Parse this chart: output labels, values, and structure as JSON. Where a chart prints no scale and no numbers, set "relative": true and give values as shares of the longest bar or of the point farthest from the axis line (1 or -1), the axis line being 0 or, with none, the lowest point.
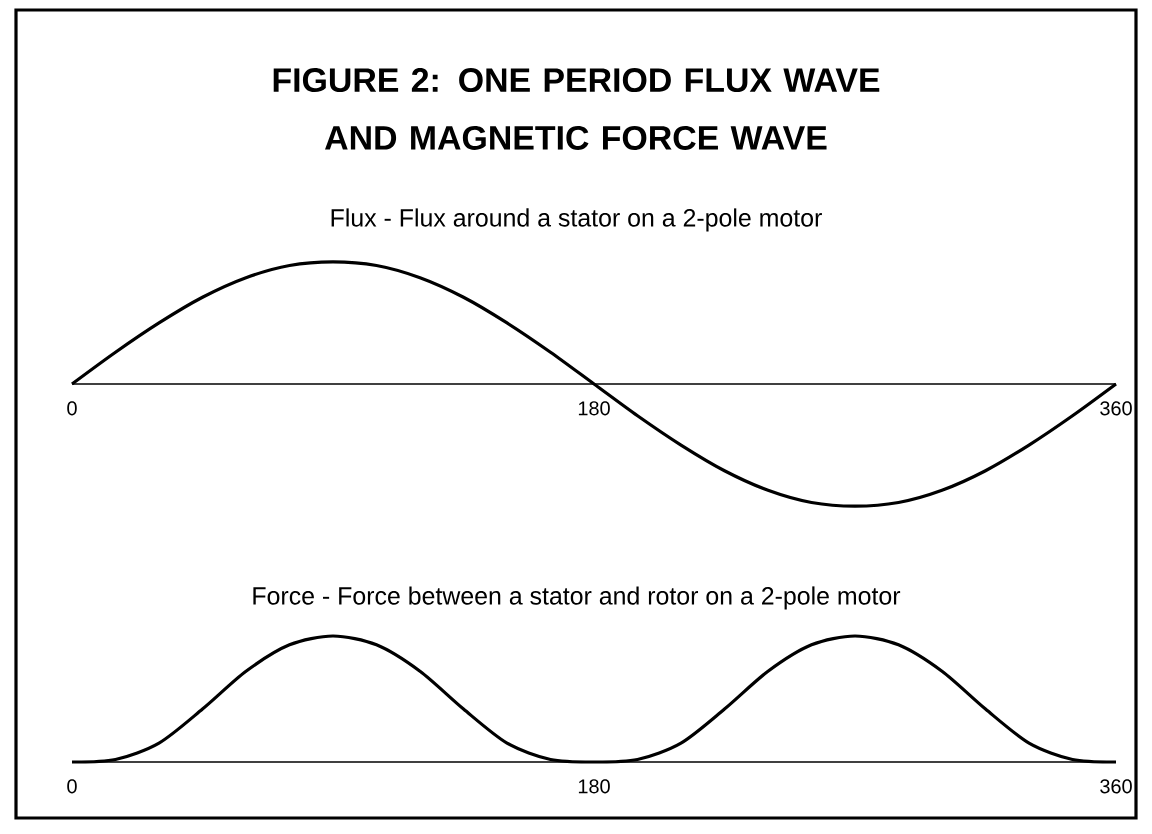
{
  "chart_data": [
    {
      "type": "line",
      "title": "FIGURE 2: ONE PERIOD FLUX WAVE AND MAGNETIC FORCE WAVE",
      "subtitle": "Flux - Flux around a stator on a 2-pole motor",
      "relative": true,
      "x": [
        0,
        15,
        30,
        45,
        60,
        75,
        90,
        105,
        120,
        135,
        150,
        165,
        180,
        195,
        210,
        225,
        240,
        255,
        270,
        285,
        300,
        315,
        330,
        345,
        360
      ],
      "series": [
        {
          "color": "#000000",
          "values": [
            0,
            0.26,
            0.5,
            0.71,
            0.87,
            0.97,
            1,
            0.97,
            0.87,
            0.71,
            0.5,
            0.26,
            0,
            -0.26,
            -0.5,
            -0.71,
            -0.87,
            -0.97,
            -1,
            -0.97,
            -0.87,
            -0.71,
            -0.5,
            -0.26,
            0
          ]
        }
      ],
      "xlim": [
        0,
        360
      ],
      "xticks": [
        0,
        180,
        360
      ],
      "tick_labels": "x"
    },
    {
      "type": "line",
      "title": "Force - Force between a stator and rotor on a 2-pole motor",
      "relative": true,
      "x": [
        0,
        15,
        30,
        45,
        60,
        75,
        90,
        105,
        120,
        135,
        150,
        165,
        180,
        195,
        210,
        225,
        240,
        255,
        270,
        285,
        300,
        315,
        330,
        345,
        360
      ],
      "series": [
        {
          "color": "#000000",
          "values": [
            0,
            0.02,
            0.15,
            0.42,
            0.72,
            0.93,
            1,
            0.93,
            0.72,
            0.42,
            0.15,
            0.02,
            0,
            0.02,
            0.15,
            0.42,
            0.72,
            0.93,
            1,
            0.93,
            0.72,
            0.42,
            0.15,
            0.02,
            0
          ]
        }
      ],
      "xlim": [
        0,
        360
      ],
      "xticks": [
        0,
        180,
        360
      ],
      "tick_labels": "x"
    }
  ]
}
